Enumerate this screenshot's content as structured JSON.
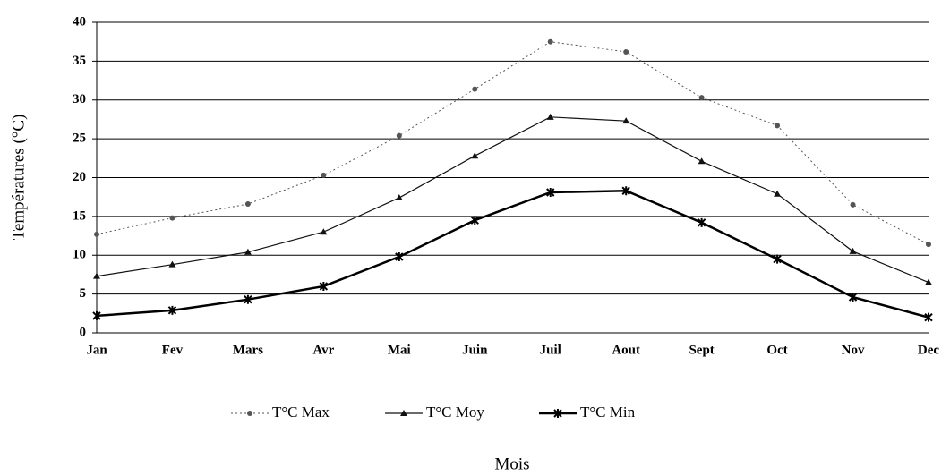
{
  "chart_data": {
    "type": "line",
    "xlabel": "Mois",
    "ylabel": "Températures (°C)",
    "categories": [
      "Jan",
      "Fev",
      "Mars",
      "Avr",
      "Mai",
      "Juin",
      "Juil",
      "Aout",
      "Sept",
      "Oct",
      "Nov",
      "Dec"
    ],
    "series": [
      {
        "name": "T°C Max",
        "color": "#555555",
        "values": [
          12.7,
          14.8,
          16.6,
          20.3,
          25.4,
          31.4,
          37.5,
          36.2,
          30.3,
          26.7,
          16.5,
          11.4
        ]
      },
      {
        "name": "T°C Moy",
        "color": "#111111",
        "values": [
          7.3,
          8.8,
          10.4,
          13.0,
          17.4,
          22.8,
          27.8,
          27.3,
          22.1,
          17.9,
          10.5,
          6.5
        ]
      },
      {
        "name": "T°C Min",
        "color": "#000000",
        "values": [
          2.2,
          2.9,
          4.3,
          6.0,
          9.8,
          14.5,
          18.1,
          18.3,
          14.2,
          9.5,
          4.6,
          2.0
        ]
      }
    ],
    "ylim": [
      0,
      40
    ],
    "yticks": [
      0,
      5,
      10,
      15,
      20,
      25,
      30,
      35,
      40
    ],
    "grid": true,
    "legend": "bottom"
  }
}
